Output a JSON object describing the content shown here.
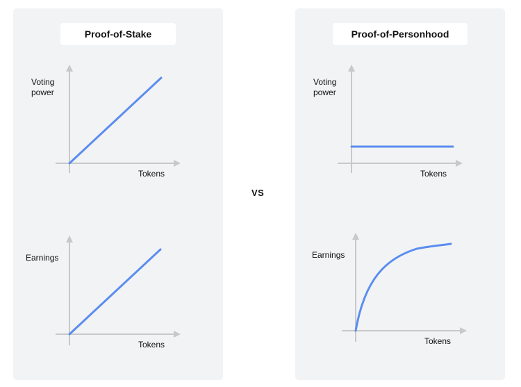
{
  "left": {
    "title": "Proof-of-Stake",
    "top_chart": {
      "ylabel_line1": "Voting",
      "ylabel_line2": "power",
      "xlabel": "Tokens",
      "shape": "linear-increasing"
    },
    "bottom_chart": {
      "ylabel": "Earnings",
      "xlabel": "Tokens",
      "shape": "linear-increasing"
    }
  },
  "vs_label": "VS",
  "right": {
    "title": "Proof-of-Personhood",
    "top_chart": {
      "ylabel_line1": "Voting",
      "ylabel_line2": "power",
      "xlabel": "Tokens",
      "shape": "constant"
    },
    "bottom_chart": {
      "ylabel": "Earnings",
      "xlabel": "Tokens",
      "shape": "concave-increasing"
    }
  },
  "colors": {
    "line": "#5b8def",
    "axis": "#c8c8c8",
    "panel": "#f2f3f5",
    "title_box": "#ffffff"
  }
}
